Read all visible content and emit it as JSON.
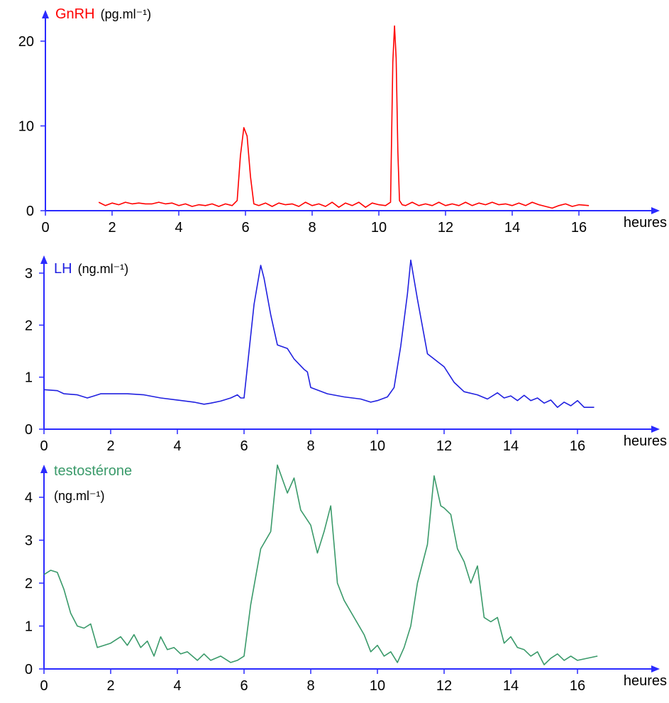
{
  "chart_data": [
    {
      "type": "line",
      "color": "#ff0000",
      "title_main": "GnRH",
      "title_unit": "(pg.ml⁻¹)",
      "xlabel": "heures",
      "xlim": [
        0,
        17.5
      ],
      "ylim": [
        0,
        23
      ],
      "xticks": [
        0,
        2,
        4,
        6,
        8,
        10,
        12,
        14,
        16
      ],
      "yticks": [
        0,
        10,
        20
      ],
      "series": [
        {
          "x": [
            1.6,
            1.8,
            2.0,
            2.2,
            2.4,
            2.6,
            2.8,
            3.0,
            3.2,
            3.4,
            3.6,
            3.8,
            4.0,
            4.2,
            4.4,
            4.6,
            4.8,
            5.0,
            5.2,
            5.4,
            5.6,
            5.75,
            5.85,
            5.95,
            6.05,
            6.15,
            6.25,
            6.4,
            6.6,
            6.8,
            7.0,
            7.2,
            7.4,
            7.6,
            7.8,
            8.0,
            8.2,
            8.4,
            8.6,
            8.8,
            9.0,
            9.2,
            9.4,
            9.6,
            9.8,
            10.0,
            10.2,
            10.35,
            10.42,
            10.47,
            10.52,
            10.57,
            10.62,
            10.7,
            10.8,
            11.0,
            11.2,
            11.4,
            11.6,
            11.8,
            12.0,
            12.2,
            12.4,
            12.6,
            12.8,
            13.0,
            13.2,
            13.4,
            13.6,
            13.8,
            14.0,
            14.2,
            14.4,
            14.6,
            14.8,
            15.0,
            15.2,
            15.4,
            15.6,
            15.8,
            16.0,
            16.3
          ],
          "y": [
            1.0,
            0.6,
            0.9,
            0.7,
            1.0,
            0.8,
            0.9,
            0.8,
            0.8,
            1.0,
            0.8,
            0.9,
            0.6,
            0.8,
            0.5,
            0.7,
            0.6,
            0.8,
            0.5,
            0.8,
            0.6,
            1.2,
            6.5,
            9.8,
            8.8,
            4.0,
            0.8,
            0.6,
            0.9,
            0.5,
            0.9,
            0.7,
            0.8,
            0.5,
            1.0,
            0.6,
            0.8,
            0.5,
            1.0,
            0.4,
            0.9,
            0.6,
            1.0,
            0.4,
            0.9,
            0.7,
            0.6,
            1.0,
            17.5,
            21.8,
            18.0,
            7.0,
            1.2,
            0.7,
            0.6,
            1.0,
            0.6,
            0.8,
            0.6,
            1.0,
            0.6,
            0.8,
            0.6,
            1.0,
            0.6,
            0.9,
            0.7,
            1.0,
            0.7,
            0.8,
            0.6,
            0.9,
            0.6,
            1.0,
            0.7,
            0.5,
            0.3,
            0.6,
            0.8,
            0.5,
            0.7,
            0.6
          ]
        }
      ]
    },
    {
      "type": "line",
      "color": "#2020e0",
      "title_main": "LH",
      "title_unit": "(ng.ml⁻¹)",
      "xlabel": "heures",
      "xlim": [
        0,
        17.5
      ],
      "ylim": [
        0,
        3.35
      ],
      "xticks": [
        0,
        2,
        4,
        6,
        8,
        10,
        12,
        14,
        16
      ],
      "yticks": [
        0,
        1,
        2,
        3
      ],
      "series": [
        {
          "x": [
            0,
            0.4,
            0.6,
            1.0,
            1.3,
            1.5,
            1.7,
            2.0,
            2.5,
            3.0,
            3.5,
            4.0,
            4.5,
            4.8,
            5.0,
            5.3,
            5.6,
            5.8,
            5.9,
            6.0,
            6.1,
            6.3,
            6.5,
            6.6,
            6.8,
            7.0,
            7.3,
            7.5,
            7.8,
            7.9,
            8.0,
            8.5,
            9.0,
            9.5,
            9.8,
            10.0,
            10.3,
            10.5,
            10.7,
            10.9,
            11.0,
            11.2,
            11.5,
            11.8,
            12.0,
            12.3,
            12.6,
            13.0,
            13.3,
            13.6,
            13.8,
            14.0,
            14.2,
            14.4,
            14.6,
            14.8,
            15.0,
            15.2,
            15.4,
            15.6,
            15.8,
            16.0,
            16.2,
            16.5
          ],
          "y": [
            0.76,
            0.74,
            0.68,
            0.66,
            0.6,
            0.64,
            0.68,
            0.68,
            0.68,
            0.66,
            0.6,
            0.56,
            0.52,
            0.48,
            0.5,
            0.54,
            0.6,
            0.66,
            0.6,
            0.6,
            1.2,
            2.4,
            3.15,
            2.9,
            2.2,
            1.62,
            1.55,
            1.35,
            1.15,
            1.1,
            0.8,
            0.68,
            0.62,
            0.58,
            0.52,
            0.55,
            0.62,
            0.8,
            1.6,
            2.6,
            3.25,
            2.5,
            1.45,
            1.3,
            1.2,
            0.9,
            0.72,
            0.66,
            0.58,
            0.7,
            0.6,
            0.64,
            0.55,
            0.65,
            0.55,
            0.6,
            0.5,
            0.56,
            0.42,
            0.52,
            0.45,
            0.55,
            0.42,
            0.42
          ]
        }
      ]
    },
    {
      "type": "line",
      "color": "#3a9a6a",
      "title_main": "testostérone",
      "title_unit": "(ng.ml⁻¹)",
      "xlabel": "heures",
      "xlim": [
        0,
        17.5
      ],
      "ylim": [
        0,
        4.85
      ],
      "xticks": [
        0,
        2,
        4,
        6,
        8,
        10,
        12,
        14,
        16
      ],
      "yticks": [
        0,
        1,
        2,
        3,
        4
      ],
      "series": [
        {
          "x": [
            0,
            0.2,
            0.4,
            0.6,
            0.8,
            1.0,
            1.2,
            1.4,
            1.6,
            1.8,
            2.0,
            2.3,
            2.5,
            2.7,
            2.9,
            3.1,
            3.3,
            3.5,
            3.7,
            3.9,
            4.1,
            4.3,
            4.6,
            4.8,
            5.0,
            5.3,
            5.6,
            5.8,
            6.0,
            6.2,
            6.5,
            6.8,
            7.0,
            7.3,
            7.5,
            7.7,
            8.0,
            8.2,
            8.4,
            8.6,
            8.8,
            9.0,
            9.3,
            9.6,
            9.8,
            10.0,
            10.2,
            10.4,
            10.6,
            10.8,
            11.0,
            11.2,
            11.5,
            11.7,
            11.9,
            12.0,
            12.2,
            12.4,
            12.6,
            12.8,
            13.0,
            13.2,
            13.4,
            13.6,
            13.8,
            14.0,
            14.2,
            14.4,
            14.6,
            14.8,
            15.0,
            15.2,
            15.4,
            15.6,
            15.8,
            16.0,
            16.3,
            16.6
          ],
          "y": [
            2.2,
            2.3,
            2.25,
            1.85,
            1.3,
            1.0,
            0.95,
            1.05,
            0.5,
            0.55,
            0.6,
            0.75,
            0.55,
            0.8,
            0.5,
            0.65,
            0.3,
            0.75,
            0.45,
            0.5,
            0.35,
            0.4,
            0.2,
            0.35,
            0.2,
            0.3,
            0.15,
            0.2,
            0.3,
            1.5,
            2.8,
            3.2,
            4.75,
            4.1,
            4.45,
            3.7,
            3.35,
            2.7,
            3.2,
            3.8,
            2.0,
            1.6,
            1.2,
            0.8,
            0.4,
            0.55,
            0.3,
            0.4,
            0.15,
            0.5,
            1.0,
            2.0,
            2.9,
            4.5,
            3.8,
            3.75,
            3.6,
            2.8,
            2.5,
            2.0,
            2.4,
            1.2,
            1.1,
            1.2,
            0.6,
            0.75,
            0.5,
            0.45,
            0.3,
            0.4,
            0.1,
            0.25,
            0.35,
            0.2,
            0.3,
            0.2,
            0.25,
            0.3
          ]
        }
      ]
    }
  ]
}
